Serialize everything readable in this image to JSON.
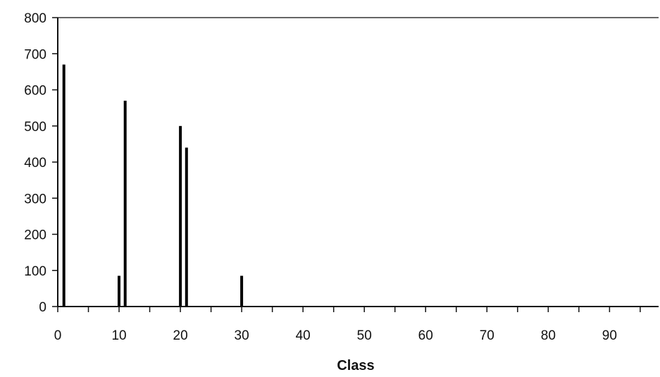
{
  "chart_data": {
    "type": "bar",
    "title": "",
    "xlabel": "Class",
    "ylabel": "",
    "xlim": [
      0,
      98
    ],
    "ylim": [
      0,
      800
    ],
    "x_ticks": [
      0,
      10,
      20,
      30,
      40,
      50,
      60,
      70,
      80,
      90
    ],
    "x_minor_ticks": [
      5,
      15,
      25,
      35,
      45,
      55,
      65,
      75,
      85,
      95
    ],
    "y_ticks": [
      0,
      100,
      200,
      300,
      400,
      500,
      600,
      700,
      800
    ],
    "grid": false,
    "legend": "none",
    "bar_color": "#000000",
    "x": [
      1,
      10,
      11,
      20,
      21,
      30
    ],
    "values": [
      670,
      85,
      570,
      500,
      440,
      85
    ]
  }
}
